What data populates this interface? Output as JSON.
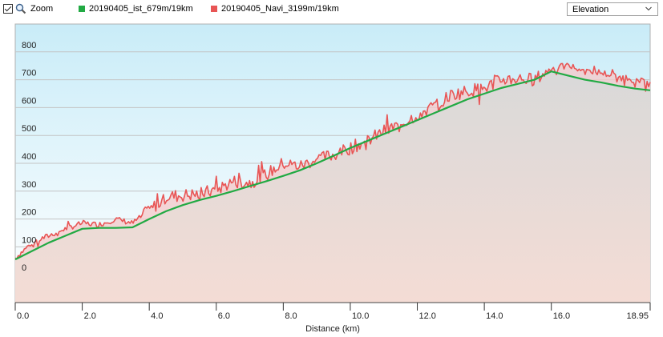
{
  "toolbar": {
    "zoom_label": "Zoom",
    "zoom_checked": true,
    "metric_select": {
      "selected": "Elevation"
    }
  },
  "colors": {
    "series_ist": "#22aa44",
    "series_navi": "#e85555",
    "sky_top": "#c9ecf8",
    "ground_top": "#d9d9d9",
    "ground_bottom": "#f4dcd5"
  },
  "icons": {
    "zoom": "magnifier-icon",
    "dropdown": "chevron-down-icon"
  },
  "chart_data": {
    "type": "area",
    "xlabel": "Distance  (km)",
    "xlim": [
      0,
      18.95
    ],
    "ylim": [
      -100,
      900
    ],
    "x_ticks": [
      "0.0",
      "2.0",
      "4.0",
      "6.0",
      "8.0",
      "10.0",
      "12.0",
      "14.0",
      "16.0",
      "18.95"
    ],
    "x_tick_values": [
      0,
      2,
      4,
      6,
      8,
      10,
      12,
      14,
      16,
      18.95
    ],
    "y_ticks": [
      "0",
      "100",
      "200",
      "300",
      "400",
      "500",
      "600",
      "700",
      "800"
    ],
    "y_tick_values": [
      0,
      100,
      200,
      300,
      400,
      500,
      600,
      700,
      800
    ],
    "grid": true,
    "series": [
      {
        "name": "20190405_ist_679m/19km",
        "x": [
          0,
          0.5,
          1,
          1.5,
          2,
          2.5,
          3,
          3.5,
          4,
          4.5,
          5,
          5.5,
          6,
          6.5,
          7,
          7.5,
          8,
          8.5,
          9,
          9.5,
          10,
          10.5,
          11,
          11.5,
          12,
          12.5,
          13,
          13.5,
          14,
          14.5,
          15,
          15.5,
          16,
          16.5,
          17,
          17.5,
          18,
          18.5,
          18.95
        ],
        "y": [
          55,
          85,
          115,
          140,
          165,
          168,
          168,
          170,
          200,
          228,
          250,
          268,
          283,
          300,
          318,
          336,
          355,
          375,
          400,
          427,
          455,
          480,
          505,
          530,
          555,
          580,
          605,
          630,
          650,
          670,
          685,
          700,
          730,
          715,
          700,
          690,
          678,
          668,
          662
        ]
      },
      {
        "name": "20190405_Navi_3199m/19km",
        "x": [
          0,
          0.5,
          1,
          1.5,
          2,
          2.5,
          3,
          3.5,
          4,
          4.5,
          5,
          5.5,
          6,
          6.5,
          7,
          7.5,
          8,
          8.5,
          9,
          9.5,
          10,
          10.5,
          11,
          11.5,
          12,
          12.5,
          13,
          13.5,
          14,
          14.5,
          15,
          15.5,
          16,
          16.5,
          17,
          17.5,
          18,
          18.5,
          18.95
        ],
        "y": [
          60,
          115,
          140,
          165,
          185,
          180,
          200,
          185,
          230,
          280,
          285,
          290,
          305,
          335,
          330,
          360,
          400,
          390,
          415,
          430,
          455,
          480,
          515,
          540,
          575,
          605,
          645,
          660,
          670,
          700,
          705,
          700,
          740,
          750,
          735,
          725,
          710,
          700,
          685
        ]
      }
    ]
  }
}
